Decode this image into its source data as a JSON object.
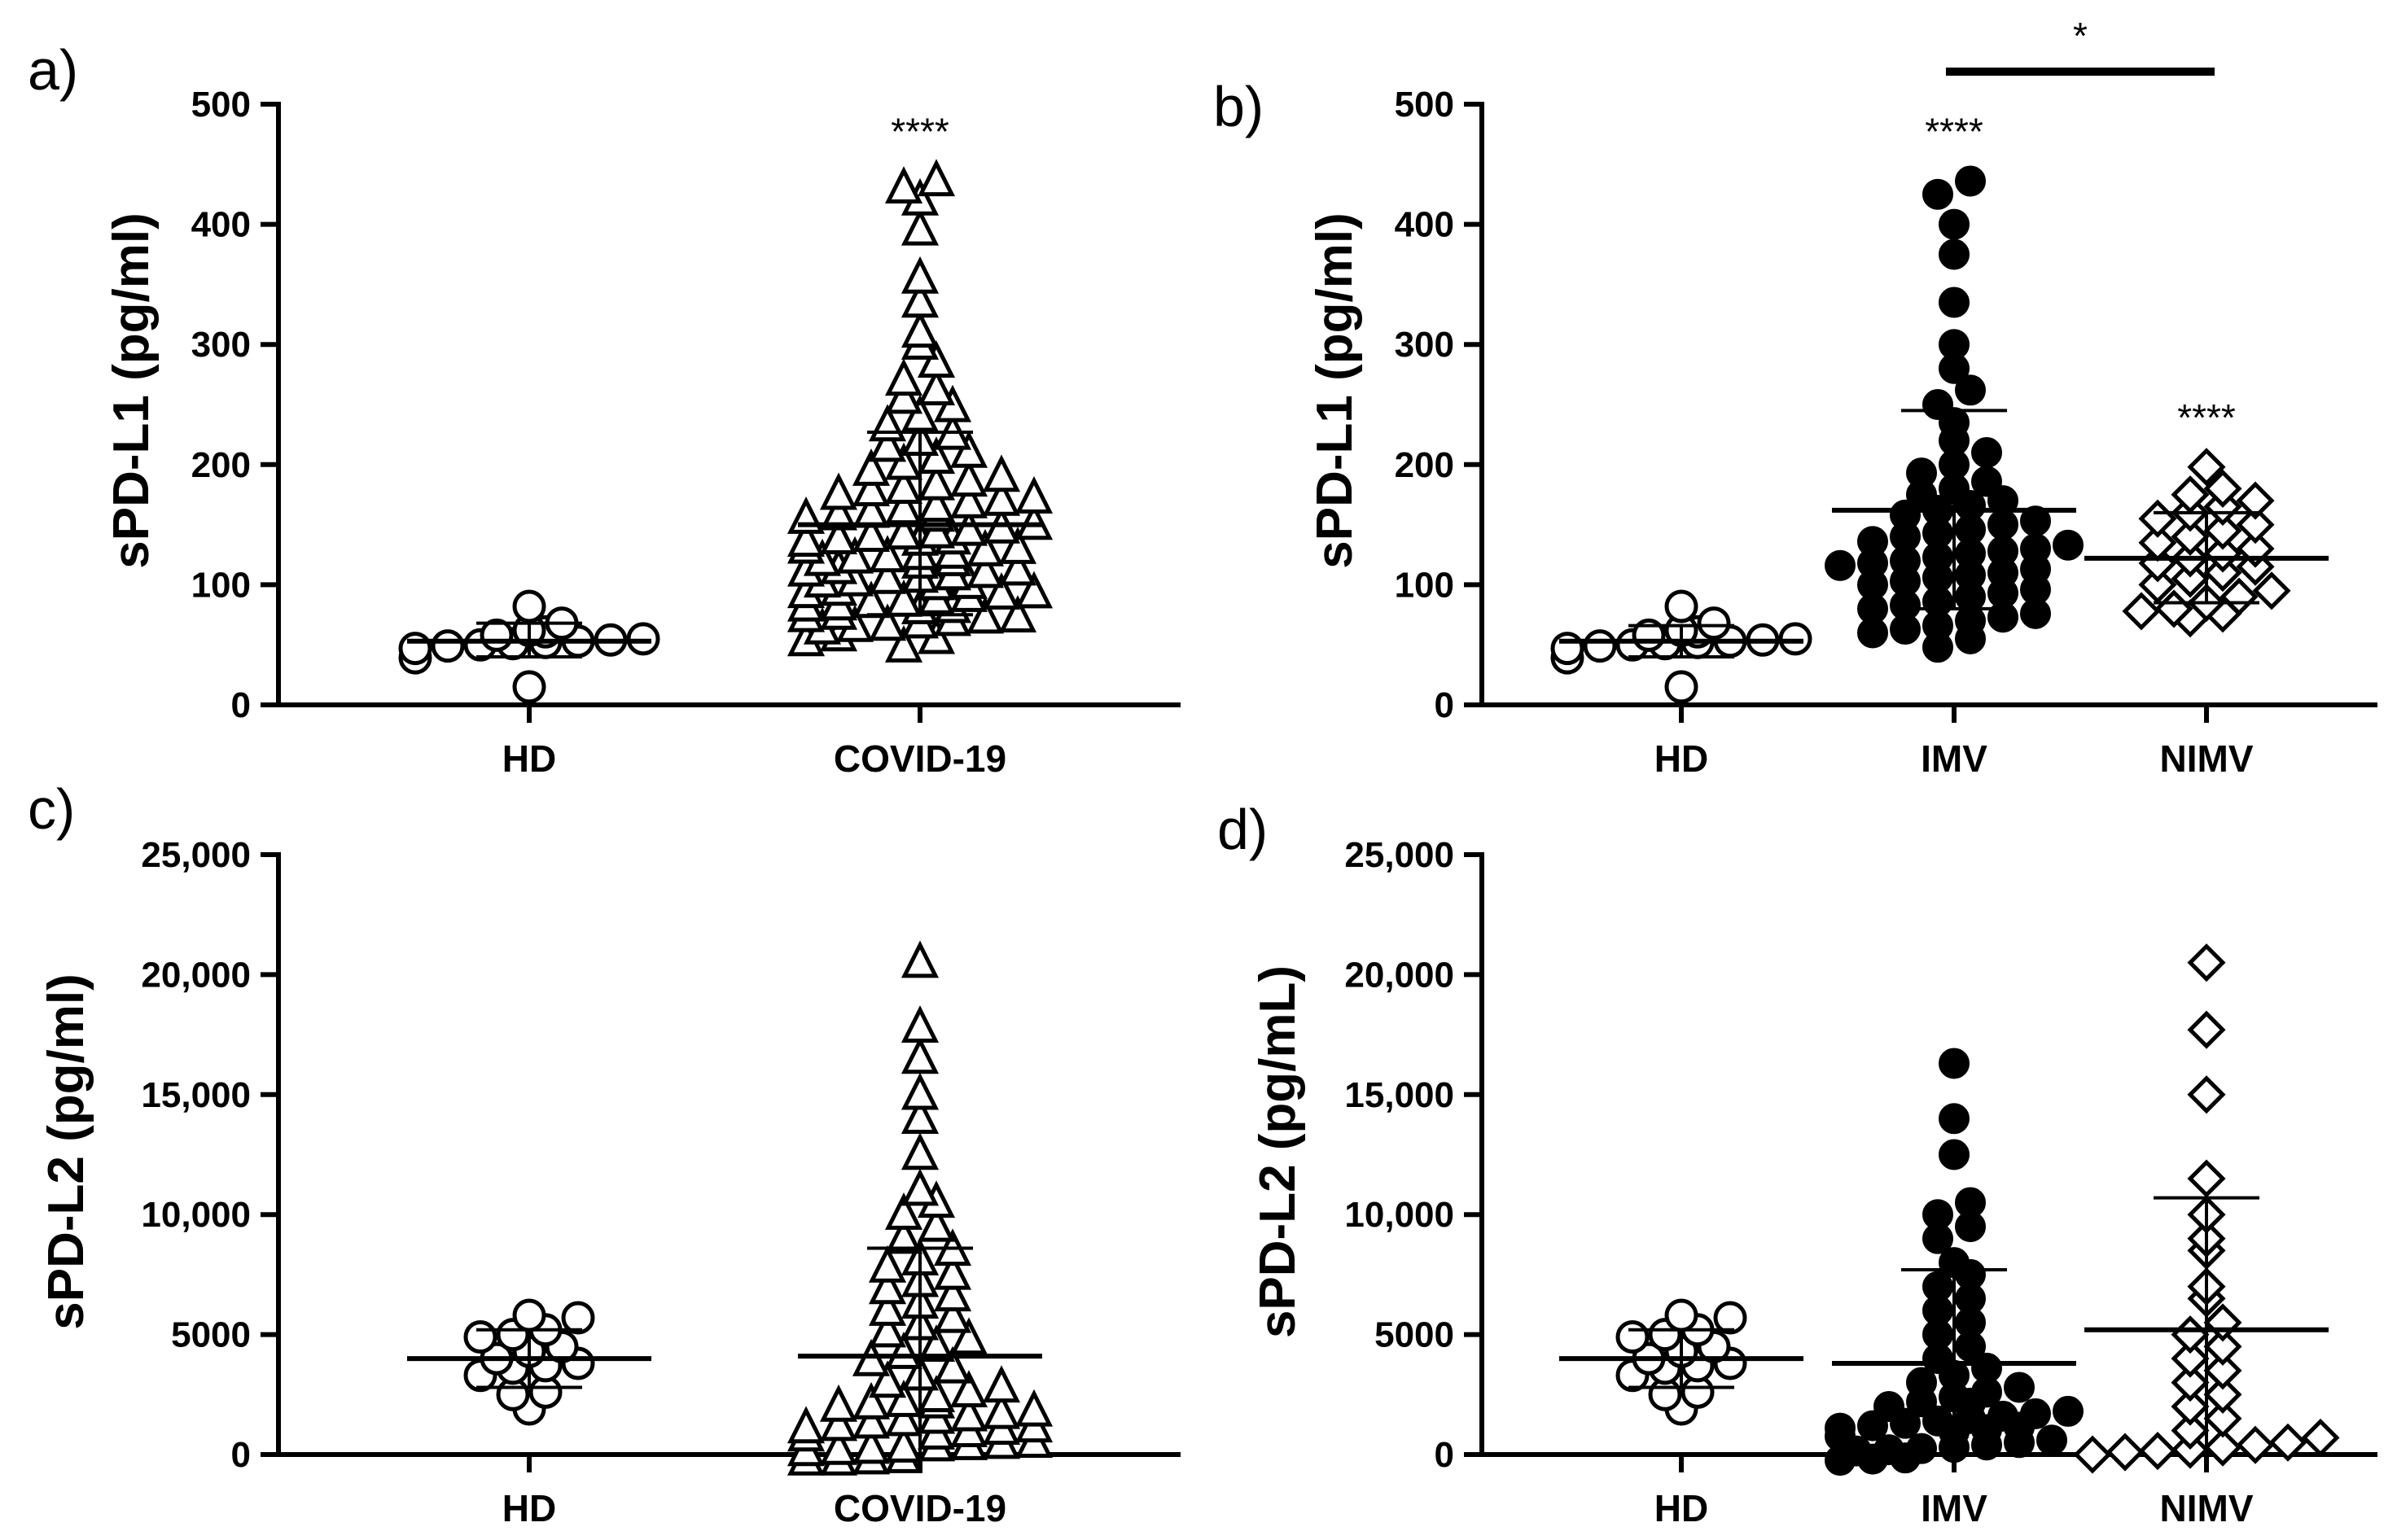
{
  "chart_data": [
    {
      "type": "scatter",
      "panel": "a)",
      "ylabel": "sPD-L1 (pg/ml)",
      "ylim": [
        0,
        500
      ],
      "yticks": [
        0,
        100,
        200,
        300,
        400,
        500
      ],
      "ytick_labels": [
        "0",
        "100",
        "200",
        "300",
        "400",
        "500"
      ],
      "categories": [
        "HD",
        "COVID-19"
      ],
      "series": [
        {
          "name": "HD",
          "marker": "circle-open",
          "values": [
            15,
            44,
            47,
            49,
            50,
            51,
            52,
            53,
            54,
            55,
            56,
            58,
            62,
            68,
            82
          ],
          "mean": 53,
          "sd_low": 40,
          "sd_high": 68,
          "annotation": ""
        },
        {
          "name": "COVID-19",
          "marker": "triangle-open",
          "values": [
            48,
            55,
            58,
            62,
            63,
            65,
            66,
            68,
            70,
            72,
            73,
            75,
            76,
            78,
            80,
            82,
            83,
            85,
            86,
            88,
            90,
            92,
            93,
            95,
            96,
            98,
            100,
            102,
            103,
            105,
            106,
            108,
            110,
            112,
            113,
            115,
            116,
            118,
            120,
            122,
            123,
            125,
            126,
            128,
            130,
            132,
            133,
            135,
            136,
            138,
            140,
            142,
            143,
            145,
            147,
            150,
            152,
            155,
            158,
            160,
            163,
            165,
            168,
            170,
            172,
            175,
            178,
            180,
            183,
            186,
            190,
            195,
            200,
            205,
            210,
            215,
            220,
            225,
            232,
            240,
            248,
            255,
            262,
            270,
            285,
            300,
            310,
            335,
            355,
            395,
            420,
            430,
            436
          ],
          "mean": 150,
          "sd_low": 75,
          "sd_high": 227,
          "annotation": "****"
        }
      ]
    },
    {
      "type": "scatter",
      "panel": "b)",
      "ylabel": "sPD-L1 (pg/ml)",
      "ylim": [
        0,
        500
      ],
      "yticks": [
        0,
        100,
        200,
        300,
        400,
        500
      ],
      "ytick_labels": [
        "0",
        "100",
        "200",
        "300",
        "400",
        "500"
      ],
      "categories": [
        "HD",
        "IMV",
        "NIMV"
      ],
      "comparison": {
        "from": "IMV",
        "to": "NIMV",
        "label": "*"
      },
      "series": [
        {
          "name": "HD",
          "marker": "circle-open",
          "values": [
            15,
            44,
            47,
            49,
            50,
            51,
            52,
            53,
            54,
            55,
            56,
            58,
            62,
            68,
            82
          ],
          "mean": 53,
          "sd_low": 40,
          "sd_high": 66,
          "annotation": ""
        },
        {
          "name": "IMV",
          "marker": "circle-filled",
          "values": [
            48,
            55,
            60,
            63,
            66,
            70,
            73,
            76,
            80,
            83,
            86,
            90,
            93,
            96,
            100,
            103,
            106,
            108,
            110,
            113,
            116,
            118,
            120,
            123,
            126,
            128,
            130,
            133,
            136,
            140,
            143,
            146,
            150,
            153,
            158,
            162,
            166,
            170,
            175,
            180,
            186,
            193,
            200,
            210,
            220,
            235,
            250,
            262,
            280,
            300,
            335,
            375,
            400,
            425,
            436
          ],
          "mean": 162,
          "sd_low": 80,
          "sd_high": 245,
          "annotation": "****"
        },
        {
          "name": "NIMV",
          "marker": "diamond-open",
          "values": [
            72,
            76,
            78,
            80,
            85,
            90,
            95,
            100,
            105,
            110,
            115,
            118,
            122,
            126,
            130,
            135,
            140,
            145,
            150,
            155,
            160,
            165,
            170,
            175,
            180,
            198
          ],
          "mean": 122,
          "sd_low": 85,
          "sd_high": 160,
          "annotation": "****"
        }
      ]
    },
    {
      "type": "scatter",
      "panel": "c)",
      "ylabel": "sPD-L2 (pg/ml)",
      "ylim": [
        0,
        25000
      ],
      "yticks": [
        0,
        5000,
        10000,
        15000,
        20000,
        25000
      ],
      "ytick_labels": [
        "0",
        "5000",
        "10,000",
        "15,000",
        "20,000",
        "25,000"
      ],
      "categories": [
        "HD",
        "COVID-19"
      ],
      "series": [
        {
          "name": "HD",
          "marker": "circle-open",
          "values": [
            1900,
            2500,
            2600,
            3300,
            3600,
            3700,
            3800,
            4000,
            4300,
            4500,
            4900,
            5000,
            5200,
            5700,
            5800
          ],
          "mean": 4000,
          "sd_low": 2800,
          "sd_high": 5200,
          "annotation": ""
        },
        {
          "name": "COVID-19",
          "marker": "triangle-open",
          "values": [
            0,
            0,
            50,
            100,
            150,
            200,
            250,
            300,
            350,
            400,
            450,
            500,
            600,
            700,
            800,
            900,
            1000,
            1100,
            1200,
            1300,
            1400,
            1500,
            1600,
            1700,
            1800,
            1900,
            2000,
            2100,
            2200,
            2400,
            2600,
            2800,
            3000,
            3300,
            3600,
            3900,
            4200,
            4500,
            4800,
            5100,
            5400,
            5700,
            6000,
            6300,
            6600,
            6900,
            7200,
            7500,
            7800,
            8100,
            8500,
            9000,
            9500,
            10000,
            10500,
            11000,
            12500,
            14000,
            15000,
            16500,
            17800,
            20500
          ],
          "mean": 4100,
          "sd_low": 0,
          "sd_high": 8600,
          "annotation": ""
        }
      ]
    },
    {
      "type": "scatter",
      "panel": "d)",
      "ylabel": "sPD-L2 (pg/mL)",
      "ylim": [
        0,
        25000
      ],
      "yticks": [
        0,
        5000,
        10000,
        15000,
        20000,
        25000
      ],
      "ytick_labels": [
        "0",
        "5000",
        "10,000",
        "15,000",
        "20,000",
        "25,000"
      ],
      "categories": [
        "HD",
        "IMV",
        "NIMV"
      ],
      "series": [
        {
          "name": "HD",
          "marker": "circle-open",
          "values": [
            1900,
            2500,
            2600,
            3300,
            3600,
            3700,
            3800,
            4000,
            4300,
            4500,
            4900,
            5000,
            5200,
            5700,
            5800
          ],
          "mean": 4000,
          "sd_low": 2800,
          "sd_high": 5200,
          "annotation": ""
        },
        {
          "name": "IMV",
          "marker": "circle-filled",
          "values": [
            0,
            50,
            100,
            150,
            200,
            250,
            300,
            400,
            500,
            600,
            700,
            800,
            900,
            1000,
            1100,
            1200,
            1300,
            1400,
            1500,
            1600,
            1700,
            1800,
            1900,
            2000,
            2200,
            2400,
            2600,
            2800,
            3000,
            3300,
            3600,
            4000,
            4500,
            5000,
            5500,
            6000,
            6500,
            7000,
            7500,
            8000,
            9000,
            9500,
            10000,
            10500,
            12500,
            14000,
            16300
          ],
          "mean": 3800,
          "sd_low": 0,
          "sd_high": 7700,
          "annotation": ""
        },
        {
          "name": "NIMV",
          "marker": "diamond-open",
          "values": [
            0,
            100,
            150,
            200,
            300,
            400,
            500,
            700,
            1000,
            1500,
            2000,
            2500,
            3000,
            3500,
            4000,
            4500,
            5000,
            5500,
            6500,
            7000,
            8500,
            9000,
            10000,
            11500,
            15000,
            17700,
            20500
          ],
          "mean": 5200,
          "sd_low": 0,
          "sd_high": 10700,
          "annotation": ""
        }
      ]
    }
  ]
}
